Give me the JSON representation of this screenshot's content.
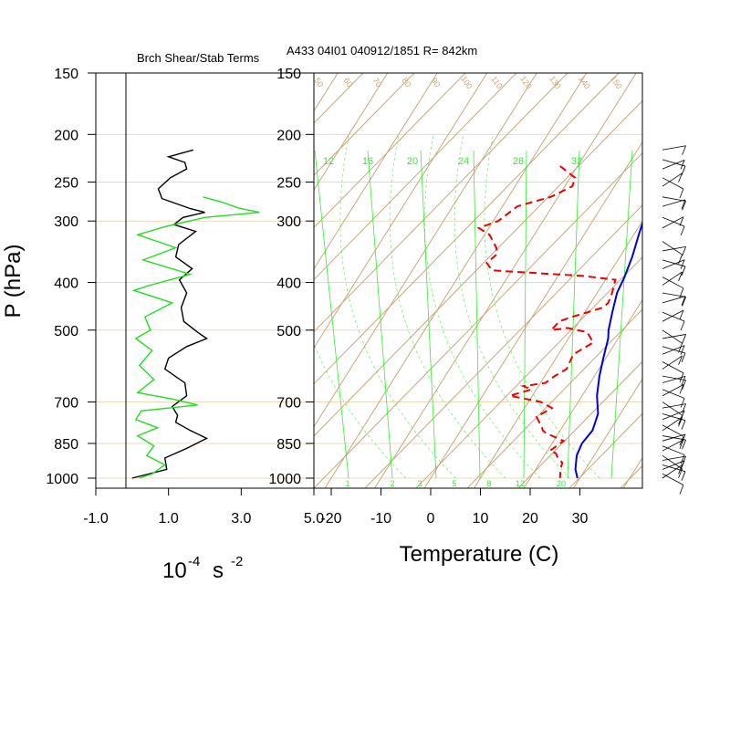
{
  "colors": {
    "isopleth": "#c8a87a",
    "isobar": "#f0d8b8",
    "mixing_ratio": "#33ee33",
    "temperature": "#0000dd",
    "dewpoint": "#ee0000",
    "shear": "#000000",
    "stability": "#22dd22",
    "wind_barb": "#000000"
  },
  "pressure_axis_label": "P (hPa)",
  "pressure_ticks": [
    "150",
    "200",
    "250",
    "300",
    "400",
    "500",
    "700",
    "850",
    "1000"
  ],
  "chart_data": [
    {
      "type": "line",
      "title": "Brch Shear/Stab Terms",
      "xlabel": "10",
      "xlabel_exp": "-4",
      "xlabel_unit": "s",
      "xlabel_unit_exp": "-2",
      "xlim": [
        -1.0,
        5.0
      ],
      "xticks": [
        "-1.0",
        "1.0",
        "3.0",
        "5.0"
      ],
      "ylim": [
        1000,
        150
      ],
      "series": [
        {
          "color": "black",
          "points": [
            [
              1.68,
              215
            ],
            [
              1.0,
              222
            ],
            [
              1.45,
              228
            ],
            [
              1.5,
              235
            ],
            [
              1.05,
              245
            ],
            [
              0.72,
              258
            ],
            [
              0.82,
              270
            ],
            [
              1.6,
              283
            ],
            [
              2.0,
              288
            ],
            [
              1.4,
              295
            ],
            [
              1.15,
              305
            ],
            [
              1.75,
              315
            ],
            [
              1.28,
              335
            ],
            [
              1.2,
              355
            ],
            [
              1.65,
              375
            ],
            [
              1.3,
              395
            ],
            [
              1.5,
              420
            ],
            [
              1.35,
              450
            ],
            [
              1.42,
              480
            ],
            [
              1.8,
              505
            ],
            [
              2.05,
              520
            ],
            [
              1.5,
              540
            ],
            [
              1.0,
              570
            ],
            [
              0.9,
              600
            ],
            [
              1.45,
              640
            ],
            [
              1.5,
              680
            ],
            [
              1.1,
              715
            ],
            [
              1.25,
              745
            ],
            [
              1.2,
              770
            ],
            [
              1.6,
              800
            ],
            [
              2.05,
              830
            ],
            [
              1.5,
              870
            ],
            [
              0.9,
              910
            ],
            [
              0.95,
              960
            ],
            [
              0.0,
              1000
            ]
          ]
        },
        {
          "color": "green",
          "points": [
            [
              1.95,
              268
            ],
            [
              2.5,
              275
            ],
            [
              2.9,
              282
            ],
            [
              3.5,
              288
            ],
            [
              2.0,
              295
            ],
            [
              0.9,
              308
            ],
            [
              0.15,
              320
            ],
            [
              1.2,
              340
            ],
            [
              0.3,
              360
            ],
            [
              1.6,
              385
            ],
            [
              0.5,
              405
            ],
            [
              0.05,
              415
            ],
            [
              1.1,
              440
            ],
            [
              0.35,
              470
            ],
            [
              0.5,
              500
            ],
            [
              0.1,
              520
            ],
            [
              0.55,
              550
            ],
            [
              0.2,
              590
            ],
            [
              0.6,
              630
            ],
            [
              0.15,
              670
            ],
            [
              1.1,
              690
            ],
            [
              1.8,
              710
            ],
            [
              0.25,
              730
            ],
            [
              0.1,
              760
            ],
            [
              0.7,
              790
            ],
            [
              0.15,
              820
            ],
            [
              0.6,
              860
            ],
            [
              0.4,
              900
            ],
            [
              0.9,
              940
            ],
            [
              0.55,
              980
            ],
            [
              0.2,
              1000
            ]
          ]
        }
      ]
    },
    {
      "type": "line",
      "title": "A433 04I01 040912/1851 R= 842km",
      "xlabel": "Temperature (C)",
      "xlim": [
        -23,
        45
      ],
      "xticks": [
        "-20",
        "-10",
        "0",
        "10",
        "20",
        "30"
      ],
      "ylim": [
        1000,
        150
      ],
      "mixing_ratio_labels_top": [
        "12",
        "16",
        "20",
        "24",
        "28",
        "32"
      ],
      "mixing_ratio_labels_bottom": [
        "1",
        "2",
        "3",
        "5",
        "8",
        "12",
        "20"
      ],
      "dry_adiabat_labels": [
        "50",
        "60",
        "70",
        "80",
        "90",
        "100",
        "110",
        "120",
        "130",
        "140",
        "150"
      ],
      "series": [
        {
          "name": "",
          "color": "blue",
          "points": [
            [
              1.5,
              205
            ],
            [
              3.5,
              220
            ],
            [
              5.5,
              238
            ],
            [
              7.5,
              258
            ],
            [
              9.5,
              285
            ],
            [
              11.0,
              320
            ],
            [
              12.5,
              355
            ],
            [
              13.5,
              390
            ],
            [
              14.0,
              420
            ],
            [
              15.5,
              460
            ],
            [
              17.0,
              500
            ],
            [
              18.0,
              520
            ],
            [
              19.5,
              570
            ],
            [
              21.0,
              620
            ],
            [
              23.0,
              680
            ],
            [
              25.5,
              740
            ],
            [
              26.5,
              800
            ],
            [
              26.0,
              850
            ],
            [
              26.5,
              900
            ],
            [
              28.0,
              960
            ],
            [
              29.5,
              1000
            ]
          ]
        },
        {
          "name": "",
          "color": "red",
          "points": [
            [
              -13.5,
              232
            ],
            [
              -9.0,
              245
            ],
            [
              -8.5,
              255
            ],
            [
              -11.5,
              268
            ],
            [
              -17.0,
              280
            ],
            [
              -19.0,
              300
            ],
            [
              -22.0,
              310
            ],
            [
              -19.0,
              320
            ],
            [
              -16.0,
              340
            ],
            [
              -15.0,
              350
            ],
            [
              -16.0,
              365
            ],
            [
              -14.0,
              378
            ],
            [
              5.0,
              388
            ],
            [
              12.0,
              395
            ],
            [
              13.0,
              420
            ],
            [
              13.5,
              440
            ],
            [
              13.0,
              450
            ],
            [
              8.0,
              470
            ],
            [
              6.0,
              480
            ],
            [
              5.5,
              500
            ],
            [
              8.5,
              495
            ],
            [
              13.0,
              505
            ],
            [
              15.5,
              530
            ],
            [
              13.0,
              560
            ],
            [
              13.5,
              600
            ],
            [
              12.0,
              620
            ],
            [
              11.0,
              640
            ],
            [
              7.0,
              650
            ],
            [
              9.0,
              660
            ],
            [
              5.5,
              680
            ],
            [
              12.5,
              700
            ],
            [
              15.5,
              720
            ],
            [
              13.5,
              750
            ],
            [
              16.0,
              790
            ],
            [
              16.5,
              800
            ],
            [
              17.5,
              810
            ],
            [
              22.0,
              840
            ],
            [
              20.5,
              880
            ],
            [
              22.0,
              890
            ],
            [
              23.0,
              910
            ],
            [
              24.5,
              930
            ],
            [
              25.0,
              960
            ],
            [
              26.0,
              1000
            ]
          ]
        }
      ],
      "wind_barb_levels": [
        215,
        225,
        235,
        245,
        255,
        268,
        280,
        295,
        310,
        330,
        345,
        360,
        375,
        390,
        405,
        420,
        440,
        460,
        480,
        500,
        520,
        540,
        560,
        580,
        600,
        620,
        640,
        660,
        680,
        700,
        720,
        740,
        760,
        780,
        800,
        820,
        840,
        860,
        880,
        900,
        920,
        940,
        960,
        980,
        1000
      ]
    }
  ]
}
